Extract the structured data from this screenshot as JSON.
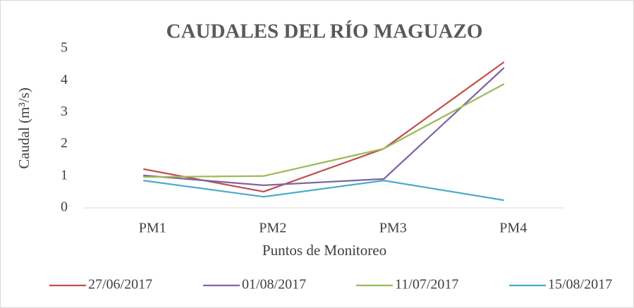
{
  "chart_data": {
    "type": "line",
    "title": "CAUDALES DEL RÍO MAGUAZO",
    "x_label": "Puntos de Monitoreo",
    "y_label": "Caudal (m³/s)",
    "categories": [
      "PM1",
      "PM2",
      "PM3",
      "PM4"
    ],
    "series": [
      {
        "name": "27/06/2017",
        "color": "#c0504d",
        "values": [
          1.22,
          0.51,
          1.86,
          4.58
        ]
      },
      {
        "name": "01/08/2017",
        "color": "#8064a2",
        "values": [
          1.02,
          0.71,
          0.91,
          4.4
        ]
      },
      {
        "name": "11/07/2017",
        "color": "#9bbb59",
        "values": [
          0.97,
          1.0,
          1.86,
          3.89
        ]
      },
      {
        "name": "15/08/2017",
        "color": "#4bacc6",
        "values": [
          0.86,
          0.35,
          0.86,
          0.24
        ]
      }
    ],
    "ylim": [
      0,
      5
    ],
    "yticks": [
      0,
      1,
      2,
      3,
      4,
      5
    ],
    "grid": false,
    "legend": "bottom"
  }
}
